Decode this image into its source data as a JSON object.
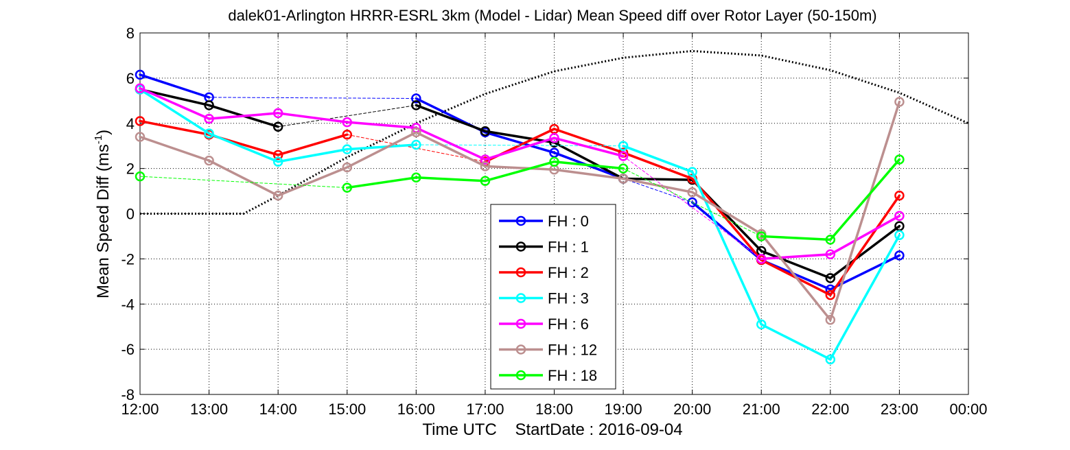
{
  "chart_data": {
    "type": "line",
    "title": "dalek01-Arlington HRRR-ESRL 3km (Model - Lidar) Mean Speed diff over Rotor Layer (50-150m)",
    "ylabel": "Mean Speed Diff (ms",
    "ylabel_sup": "-1",
    "ylabel_close": ")",
    "xlabel": "Time UTC    StartDate : 2016-09-04",
    "ylim": [
      -8,
      8
    ],
    "xlim": [
      12,
      24
    ],
    "yticks": [
      -8,
      -6,
      -4,
      -2,
      0,
      2,
      4,
      6,
      8
    ],
    "xticks": [
      12,
      13,
      14,
      15,
      16,
      17,
      18,
      19,
      20,
      21,
      22,
      23,
      24
    ],
    "xtick_labels": [
      "12:00",
      "13:00",
      "14:00",
      "15:00",
      "16:00",
      "17:00",
      "18:00",
      "19:00",
      "20:00",
      "21:00",
      "22:00",
      "23:00",
      "00:00"
    ],
    "grid": true,
    "legend_position": "bottom-center",
    "series": [
      {
        "name": "FH : 0",
        "color": "#0000ff",
        "x": [
          12,
          13,
          16,
          17,
          18,
          19,
          20,
          21,
          22,
          23
        ],
        "y": [
          6.15,
          5.15,
          5.1,
          3.6,
          2.7,
          1.55,
          0.5,
          -2.05,
          -3.35,
          -1.85
        ],
        "dashed": [
          [
            13,
            16
          ],
          [
            19,
            20
          ]
        ]
      },
      {
        "name": "FH : 1",
        "color": "#000000",
        "x": [
          12,
          13,
          14,
          16,
          17,
          18,
          19,
          20,
          21,
          22,
          23
        ],
        "y": [
          5.5,
          4.8,
          3.85,
          4.8,
          3.65,
          3.15,
          1.55,
          1.5,
          -1.65,
          -2.85,
          -0.55
        ],
        "dashed": [
          [
            14,
            16
          ]
        ]
      },
      {
        "name": "FH : 2",
        "color": "#ff0000",
        "x": [
          12,
          13,
          14,
          15,
          17,
          18,
          19,
          20,
          21,
          22,
          23
        ],
        "y": [
          4.1,
          3.5,
          2.6,
          3.5,
          2.3,
          3.75,
          2.7,
          1.55,
          -2.05,
          -3.6,
          0.8
        ],
        "dashed": [
          [
            15,
            17
          ]
        ]
      },
      {
        "name": "FH : 3",
        "color": "#00ffff",
        "x": [
          12,
          13,
          14,
          15,
          16,
          19,
          20,
          21,
          22,
          23
        ],
        "y": [
          5.5,
          3.55,
          2.3,
          2.85,
          3.05,
          3.0,
          1.85,
          -4.9,
          -6.45,
          -0.95
        ],
        "dashed": [
          [
            16,
            19
          ]
        ]
      },
      {
        "name": "FH : 6",
        "color": "#ff00ff",
        "x": [
          12,
          13,
          14,
          15,
          16,
          17,
          18,
          19,
          21,
          22,
          23
        ],
        "y": [
          5.55,
          4.2,
          4.45,
          4.05,
          3.8,
          2.4,
          3.35,
          2.55,
          -2.0,
          -1.8,
          -0.1
        ],
        "dashed": [
          [
            19,
            21
          ]
        ]
      },
      {
        "name": "FH : 12",
        "color": "#bc8f8f",
        "x": [
          12,
          13,
          14,
          15,
          16,
          17,
          18,
          19,
          20,
          21,
          22,
          23
        ],
        "y": [
          3.4,
          2.35,
          0.8,
          2.05,
          3.6,
          2.1,
          1.95,
          1.55,
          0.95,
          -0.9,
          -4.7,
          4.95
        ],
        "dashed": []
      },
      {
        "name": "FH : 18",
        "color": "#00ff00",
        "x": [
          12,
          15,
          16,
          17,
          18,
          19,
          21,
          22,
          23
        ],
        "y": [
          1.65,
          1.15,
          1.6,
          1.45,
          2.3,
          2.0,
          -1.0,
          -1.15,
          2.4
        ],
        "dashed": [
          [
            12,
            15
          ],
          [
            19,
            21
          ]
        ]
      }
    ],
    "reference_curve": {
      "style": "dotted",
      "color": "#000000",
      "x": [
        12,
        13.5,
        14,
        15,
        16,
        17,
        18,
        19,
        20,
        21,
        22,
        23,
        24
      ],
      "y": [
        0,
        0,
        0.8,
        2.5,
        4.0,
        5.3,
        6.3,
        6.9,
        7.2,
        7.0,
        6.35,
        5.35,
        4.0
      ]
    }
  }
}
